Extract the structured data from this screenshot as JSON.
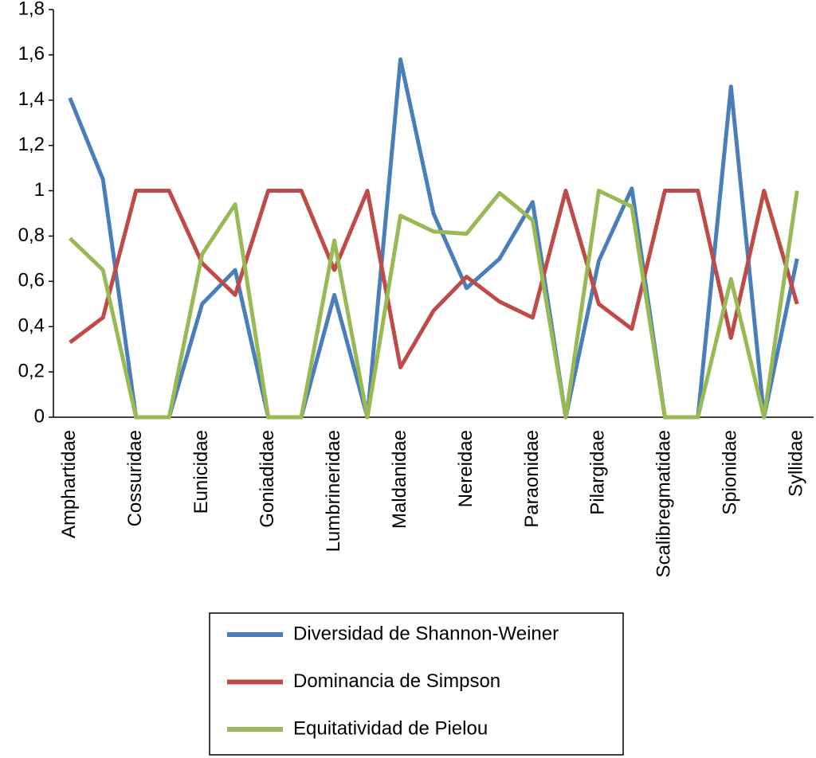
{
  "chart_data": {
    "type": "line",
    "categories": [
      "Amphartidae",
      null,
      "Cossuridae",
      null,
      "Eunicidae",
      null,
      "Goniadidae",
      null,
      "Lumbrineridae",
      null,
      "Maldanidae",
      null,
      "Nereidae",
      null,
      "Paraonidae",
      null,
      "Pilargidae",
      null,
      "Scalibregmatidae",
      null,
      "Spionidae",
      null,
      "Syllidae"
    ],
    "series": [
      {
        "name": "Diversidad de Shannon-Weiner",
        "color": "#4a7ebb",
        "values": [
          1.41,
          1.05,
          0,
          0,
          0.5,
          0.65,
          0,
          0,
          0.54,
          0,
          1.58,
          0.9,
          0.57,
          0.7,
          0.95,
          0,
          0.69,
          1.01,
          0,
          0,
          1.46,
          0,
          0.7
        ]
      },
      {
        "name": "Dominancia de Simpson",
        "color": "#be4b48",
        "values": [
          0.33,
          0.44,
          1,
          1,
          0.68,
          0.54,
          1,
          1,
          0.65,
          1,
          0.22,
          0.47,
          0.62,
          0.51,
          0.44,
          1,
          0.5,
          0.39,
          1,
          1,
          0.35,
          1,
          0.5
        ]
      },
      {
        "name": "Equitatividad de Pielou",
        "color": "#98b954",
        "values": [
          0.79,
          0.65,
          0,
          0,
          0.72,
          0.94,
          0,
          0,
          0.78,
          0,
          0.89,
          0.82,
          0.81,
          0.99,
          0.87,
          0,
          1.0,
          0.93,
          0,
          0,
          0.61,
          0,
          1.0
        ]
      }
    ],
    "ylim": [
      0,
      1.8
    ],
    "yticks": [
      0,
      {
        "value": 0.2,
        "label": "0,2"
      },
      {
        "value": 0.4,
        "label": "0,4"
      },
      {
        "value": 0.6,
        "label": "0,6"
      },
      {
        "value": 0.8,
        "label": "0,8"
      },
      1,
      {
        "value": 1.2,
        "label": "1,2"
      },
      {
        "value": 1.4,
        "label": "1,4"
      },
      {
        "value": 1.6,
        "label": "1,6"
      },
      {
        "value": 1.8,
        "label": "1,8"
      }
    ],
    "grid": false
  }
}
